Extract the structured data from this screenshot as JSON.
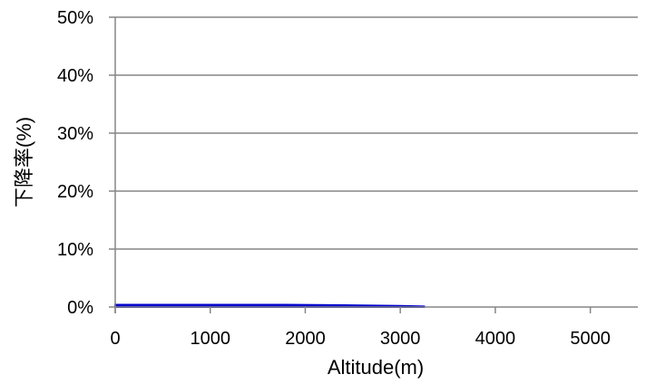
{
  "chart_data": {
    "type": "area",
    "title": "",
    "xlabel": "Altitude(m)",
    "ylabel": "下降率(%)",
    "xlim": [
      0,
      5500
    ],
    "ylim": [
      0,
      0.5
    ],
    "x_ticks": [
      0,
      1000,
      2000,
      3000,
      4000,
      5000
    ],
    "x_tick_labels": [
      "0",
      "1000",
      "2000",
      "3000",
      "4000",
      "5000"
    ],
    "y_ticks": [
      0,
      0.1,
      0.2,
      0.3,
      0.4,
      0.5
    ],
    "y_tick_labels": [
      "0%",
      "10%",
      "20%",
      "30%",
      "40%",
      "50%"
    ],
    "grid": "horizontal",
    "legend": "none",
    "series": [
      {
        "color": "#9bbb59",
        "kind": "area",
        "x": [
          0,
          400
        ],
        "y": [
          0.004,
          0.0
        ]
      },
      {
        "color": "#0000cc",
        "kind": "area",
        "x": [
          0,
          400,
          1000,
          1800,
          2500,
          3000,
          3250
        ],
        "y": [
          0.004,
          0.004,
          0.004,
          0.004,
          0.003,
          0.002,
          0.001
        ]
      }
    ]
  }
}
